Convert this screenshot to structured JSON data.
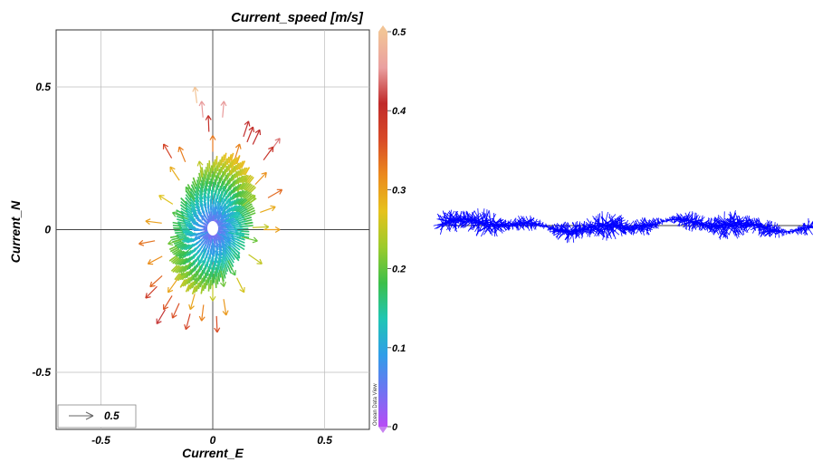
{
  "chart_data": [
    {
      "type": "scatter",
      "title": "Current_speed [m/s]",
      "xlabel": "Current_E",
      "ylabel": "Current_N",
      "xlim": [
        -0.7,
        0.7
      ],
      "ylim": [
        -0.7,
        0.7
      ],
      "x_ticks": [
        -0.5,
        0,
        0.5
      ],
      "x_tick_labels": [
        "-0.5",
        "0",
        "0.5"
      ],
      "y_ticks": [
        -0.5,
        0,
        0.5
      ],
      "y_tick_labels": [
        "-0.5",
        "0",
        "0.5"
      ],
      "grid": true,
      "scale_arrow_label": "0.5",
      "colorbar": {
        "ticks": [
          0,
          0.1,
          0.2,
          0.3,
          0.4,
          0.5
        ],
        "tick_labels": [
          "0",
          "0.1",
          "0.2",
          "0.3",
          "0.4",
          "0.5"
        ],
        "range": [
          0,
          0.5
        ],
        "colors": [
          "#b84cf5",
          "#6f74f2",
          "#2f9ee8",
          "#1fc6b4",
          "#3cbf4a",
          "#9ccb2c",
          "#e6c21c",
          "#eb8a1d",
          "#d84a28",
          "#c02a2a",
          "#eaa0a0",
          "#f2c496"
        ]
      },
      "watermark": "Ocean Data View",
      "vectors": [
        [
          -0.08,
          0.5
        ],
        [
          -0.05,
          0.45
        ],
        [
          0.05,
          0.45
        ],
        [
          0.16,
          0.38
        ],
        [
          0.21,
          0.35
        ],
        [
          0.18,
          0.36
        ],
        [
          -0.22,
          0.3
        ],
        [
          -0.15,
          0.29
        ],
        [
          0.0,
          0.33
        ],
        [
          0.12,
          0.3
        ],
        [
          0.3,
          0.32
        ],
        [
          0.27,
          0.29
        ],
        [
          -0.19,
          0.22
        ],
        [
          -0.06,
          0.24
        ],
        [
          0.1,
          0.25
        ],
        [
          0.24,
          0.2
        ],
        [
          0.31,
          0.14
        ],
        [
          0.15,
          0.18
        ],
        [
          -0.24,
          0.12
        ],
        [
          -0.12,
          0.15
        ],
        [
          0.05,
          0.15
        ],
        [
          0.19,
          0.12
        ],
        [
          0.28,
          0.08
        ],
        [
          0.08,
          0.1
        ],
        [
          -0.3,
          0.03
        ],
        [
          -0.18,
          0.06
        ],
        [
          -0.05,
          0.05
        ],
        [
          0.12,
          0.06
        ],
        [
          0.25,
          0.01
        ],
        [
          0.3,
          0.0
        ],
        [
          -0.33,
          -0.05
        ],
        [
          -0.2,
          -0.05
        ],
        [
          -0.08,
          -0.03
        ],
        [
          0.08,
          -0.04
        ],
        [
          0.2,
          -0.04
        ],
        [
          0.14,
          -0.02
        ],
        [
          -0.29,
          -0.12
        ],
        [
          -0.15,
          -0.1
        ],
        [
          0.0,
          -0.09
        ],
        [
          0.12,
          -0.1
        ],
        [
          0.22,
          -0.12
        ],
        [
          -0.06,
          -0.12
        ],
        [
          -0.28,
          -0.2
        ],
        [
          -0.2,
          -0.22
        ],
        [
          -0.08,
          -0.18
        ],
        [
          0.05,
          -0.2
        ],
        [
          0.14,
          -0.22
        ],
        [
          -0.14,
          -0.16
        ],
        [
          -0.22,
          -0.28
        ],
        [
          -0.1,
          -0.28
        ],
        [
          0.0,
          -0.25
        ],
        [
          -0.05,
          -0.32
        ],
        [
          0.06,
          -0.3
        ],
        [
          -0.25,
          -0.33
        ],
        [
          -0.12,
          -0.35
        ],
        [
          0.02,
          -0.36
        ],
        [
          -0.3,
          -0.24
        ],
        [
          -0.18,
          -0.31
        ],
        [
          0.1,
          -0.16
        ],
        [
          -0.02,
          0.4
        ]
      ]
    },
    {
      "type": "line",
      "title": "",
      "xlabel": "",
      "ylabel": "",
      "description_units": "current vector time series (stick plot)",
      "color": "#0000ff"
    }
  ]
}
